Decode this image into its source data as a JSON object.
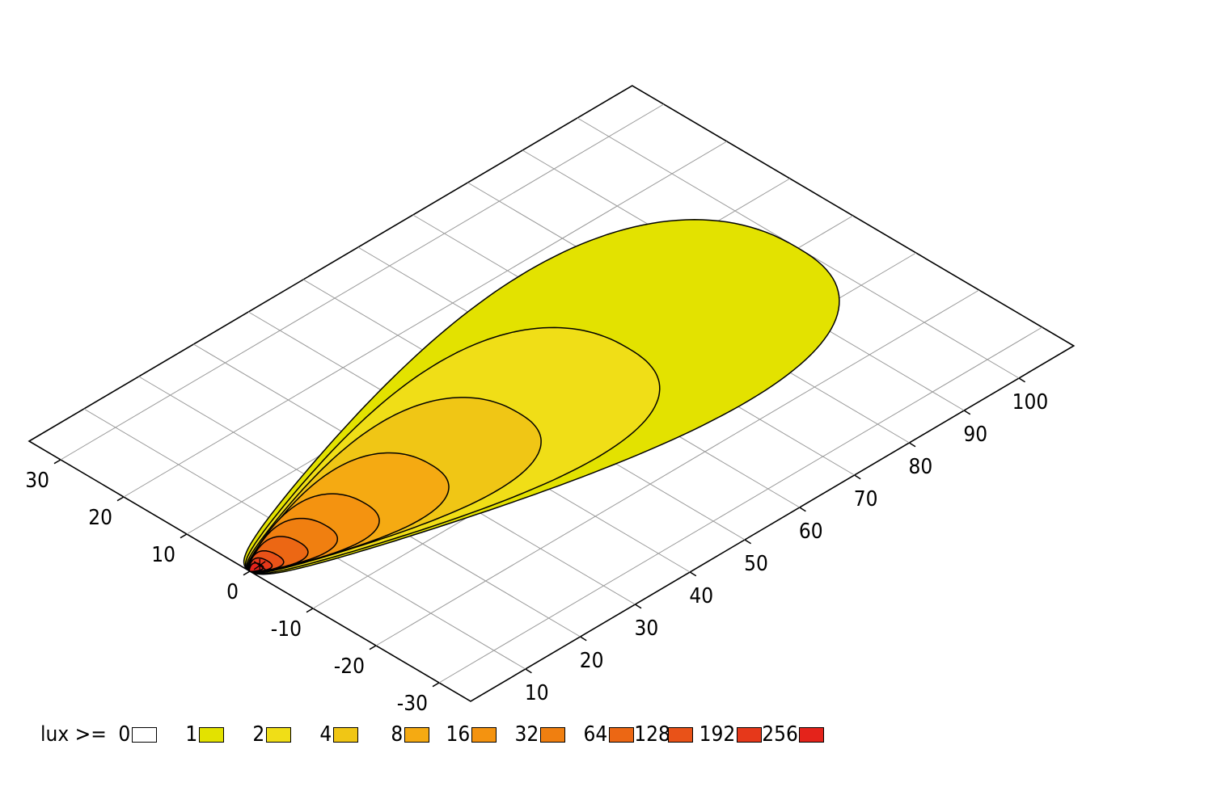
{
  "chart_data": {
    "type": "heatmap",
    "x_ticks": [
      -30,
      -20,
      -10,
      0,
      10,
      20,
      30
    ],
    "y_ticks": [
      10,
      20,
      30,
      40,
      50,
      60,
      70,
      80,
      90,
      100
    ],
    "xlim": [
      -35,
      35
    ],
    "ylim": [
      0,
      110
    ],
    "grid": true,
    "legend": {
      "prefix": "lux >= ",
      "placement": "bottom-left",
      "levels": [
        {
          "label": "0",
          "color": "#ffffff"
        },
        {
          "label": "1",
          "color": "#e3e200"
        },
        {
          "label": "2",
          "color": "#f0de17"
        },
        {
          "label": "4",
          "color": "#f0c615"
        },
        {
          "label": "8",
          "color": "#f5aa12"
        },
        {
          "label": "16",
          "color": "#f49310"
        },
        {
          "label": "32",
          "color": "#f07f10"
        },
        {
          "label": "64",
          "color": "#ec6714"
        },
        {
          "label": "128",
          "color": "#e95218"
        },
        {
          "label": "192",
          "color": "#e6381a"
        },
        {
          "label": "256",
          "color": "#e4231b"
        }
      ]
    },
    "contours": [
      {
        "level": 1,
        "x_extent": [
          -19,
          21
        ],
        "y_extent": [
          0,
          100
        ]
      },
      {
        "level": 2,
        "x_extent": [
          -14,
          15
        ],
        "y_extent": [
          0,
          69
        ]
      },
      {
        "level": 4,
        "x_extent": [
          -10,
          11
        ],
        "y_extent": [
          0,
          49
        ]
      },
      {
        "level": 8,
        "x_extent": [
          -7.5,
          8
        ],
        "y_extent": [
          0,
          33
        ]
      },
      {
        "level": 16,
        "x_extent": [
          -5.5,
          6
        ],
        "y_extent": [
          0,
          21
        ]
      },
      {
        "level": 32,
        "x_extent": [
          -4,
          4.5
        ],
        "y_extent": [
          0,
          14
        ]
      },
      {
        "level": 64,
        "x_extent": [
          -3,
          3.2
        ],
        "y_extent": [
          0,
          9
        ]
      },
      {
        "level": 128,
        "x_extent": [
          -2,
          2.2
        ],
        "y_extent": [
          0,
          5
        ]
      },
      {
        "level": 192,
        "x_extent": [
          -1.4,
          1.5
        ],
        "y_extent": [
          0,
          3.2
        ]
      },
      {
        "level": 256,
        "x_extent": [
          -0.8,
          0.9
        ],
        "y_extent": [
          0,
          2
        ]
      }
    ]
  }
}
